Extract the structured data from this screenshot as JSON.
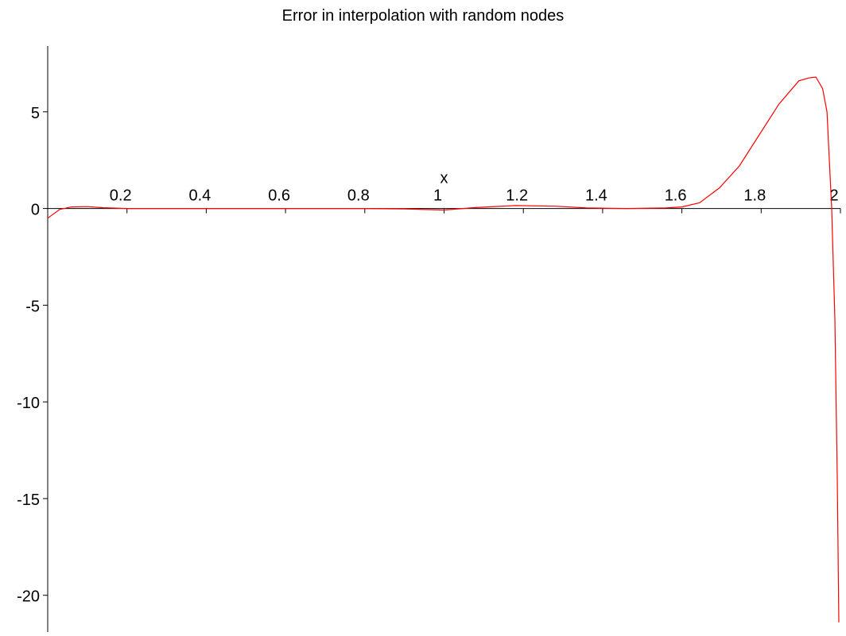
{
  "chart_data": {
    "type": "line",
    "title": "Error in interpolation with random nodes",
    "x_label": "x",
    "xlim": [
      0,
      2
    ],
    "ylim": [
      -21.9,
      8.4
    ],
    "xticks": [
      0.2,
      0.4,
      0.6,
      0.8,
      1,
      1.2,
      1.4,
      1.6,
      1.8,
      2
    ],
    "yticks": [
      -20,
      -15,
      -10,
      -5,
      0,
      5
    ],
    "series": [
      {
        "color": "#ff0000",
        "x": [
          0,
          0.03,
          0.06,
          0.1,
          0.14,
          0.2,
          0.4,
          0.6,
          0.8,
          0.9,
          1.0,
          1.08,
          1.18,
          1.28,
          1.36,
          1.46,
          1.56,
          1.6,
          1.645,
          1.695,
          1.745,
          1.795,
          1.845,
          1.895,
          1.92,
          1.938,
          1.955,
          1.966,
          1.978,
          1.986,
          1.992,
          1.996
        ],
        "values": [
          -0.5,
          -0.05,
          0.08,
          0.1,
          0.04,
          0,
          0,
          0,
          0,
          -0.02,
          -0.08,
          0.05,
          0.15,
          0.12,
          0.03,
          0,
          0.03,
          0.08,
          0.3,
          1.07,
          2.2,
          3.8,
          5.4,
          6.6,
          6.75,
          6.8,
          6.2,
          5,
          0,
          -5.7,
          -13.9,
          -21.4
        ]
      }
    ]
  }
}
